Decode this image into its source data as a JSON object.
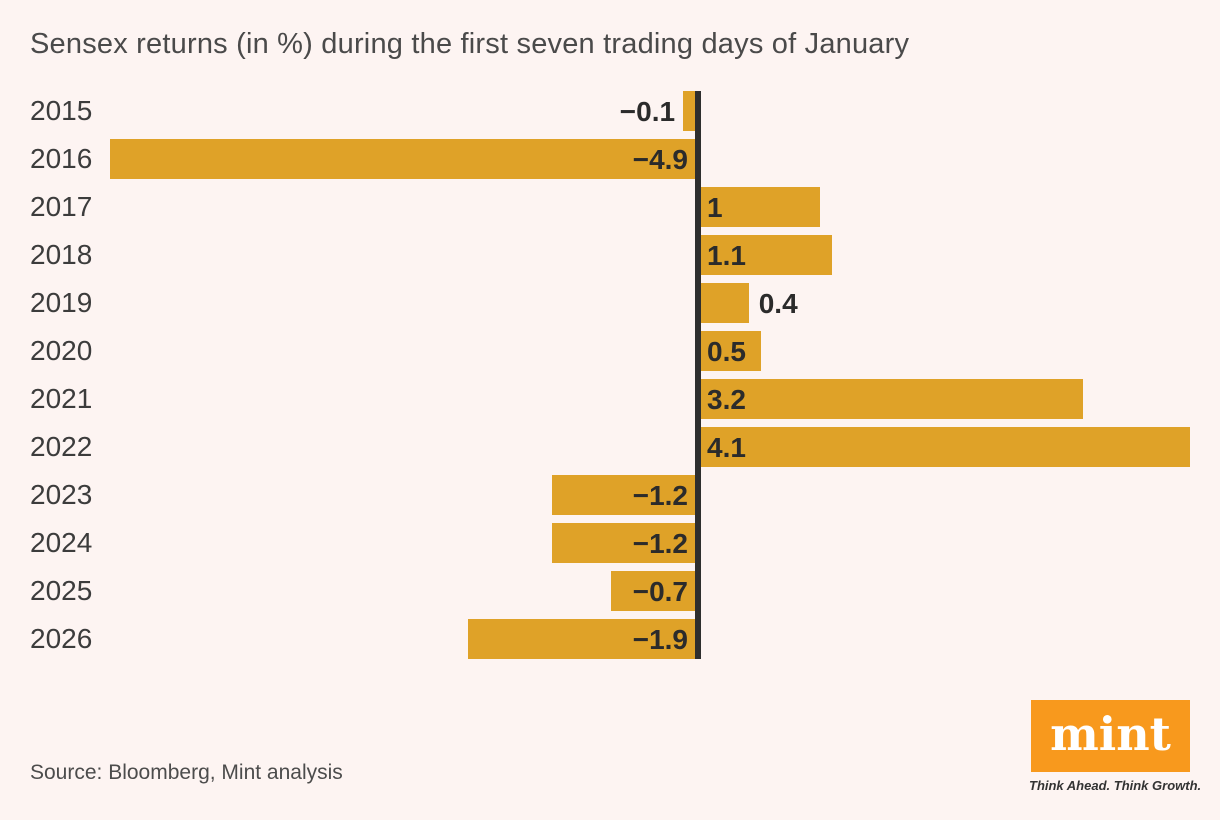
{
  "page": {
    "background": "#FDF4F2"
  },
  "header": {
    "title": "Sensex returns (in %) during the first seven trading days of January"
  },
  "chart_data": {
    "type": "bar",
    "orientation": "horizontal",
    "title": "Sensex returns (in %) during the first seven trading days of January",
    "xlabel": "",
    "ylabel": "",
    "categories": [
      "2015",
      "2016",
      "2017",
      "2018",
      "2019",
      "2020",
      "2021",
      "2022",
      "2023",
      "2024",
      "2025",
      "2026"
    ],
    "values": [
      -0.1,
      -4.9,
      1,
      1.1,
      0.4,
      0.5,
      3.2,
      4.1,
      -1.2,
      -1.2,
      -0.7,
      -1.9
    ],
    "value_labels": [
      "−0.1",
      "−4.9",
      "1",
      "1.1",
      "0.4",
      "0.5",
      "3.2",
      "4.1",
      "−1.2",
      "−1.2",
      "−0.7",
      "−1.9"
    ],
    "xlim": [
      -4.95,
      4.4
    ],
    "grid": false,
    "legend": "none",
    "bar_color": "#DFA228",
    "axis_color": "#2E2E2E",
    "label_color": "#2B2B2B"
  },
  "footer": {
    "source": "Source: Bloomberg, Mint analysis",
    "logo": {
      "text": "mint",
      "tagline": "Think Ahead. Think Growth.",
      "color": "#F8991D"
    }
  }
}
